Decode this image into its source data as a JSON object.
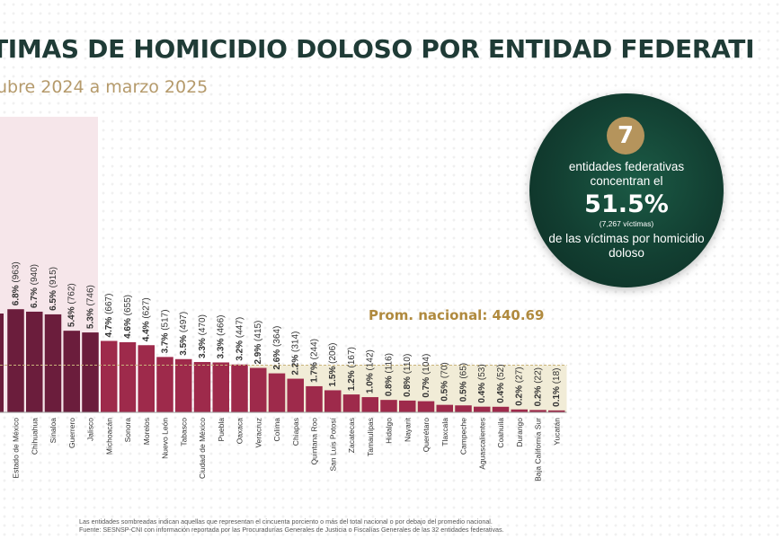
{
  "title": "TIMAS DE HOMICIDIO DOLOSO POR ENTIDAD FEDERATI",
  "subtitle": "ubre 2024 a marzo 2025",
  "callout": {
    "number": "7",
    "text_top": "entidades federativas concentran el",
    "percent": "51.5%",
    "victims": "(7,267 víctimas)",
    "text_bottom": "de las víctimas por homicidio doloso"
  },
  "footnotes": {
    "line1": "Las entidades sombreadas indican aquellas que representan el cincuenta porciento o más del total nacional o por debajo del promedio nacional.",
    "line2": "Fuente: SESNSP-CNI con información reportada por las Procuradurías Generales de Justicia o Fiscalías Generales de las 32 entidades federativas."
  },
  "colors": {
    "bar_dark": "#6b1d3c",
    "bar_light": "#9e2a4b",
    "shade_high": "#f6e6ea",
    "shade_low": "#f1ecd7",
    "avg_label": "#b08a3e"
  },
  "chart_data": {
    "type": "bar",
    "average_line": {
      "label": "Prom. nacional: 440.69",
      "value": 440.69
    },
    "categories": [
      "Estado de México",
      "Chihuahua",
      "Sinaloa",
      "Guerrero",
      "Jalisco",
      "Michoacán",
      "Sonora",
      "Morelos",
      "Nuevo León",
      "Tabasco",
      "Ciudad de México",
      "Puebla",
      "Oaxaca",
      "Veracruz",
      "Colima",
      "Chiapas",
      "Quintana Roo",
      "San Luis Potosí",
      "Zacatecas",
      "Tamaulipas",
      "Hidalgo",
      "Nayarit",
      "Querétaro",
      "Tlaxcala",
      "Campeche",
      "Aguascalientes",
      "Coahuila",
      "Durango",
      "Baja California Sur",
      "Yucatán"
    ],
    "values": [
      963,
      940,
      915,
      762,
      746,
      667,
      655,
      627,
      517,
      497,
      470,
      466,
      447,
      415,
      364,
      314,
      244,
      206,
      167,
      142,
      116,
      110,
      104,
      70,
      65,
      53,
      52,
      27,
      22,
      18
    ],
    "percent_labels": [
      "6.8%",
      "6.7%",
      "6.5%",
      "5.4%",
      "5.3%",
      "4.7%",
      "4.6%",
      "4.4%",
      "3.7%",
      "3.5%",
      "3.3%",
      "3.3%",
      "3.2%",
      "2.9%",
      "2.6%",
      "2.2%",
      "1.7%",
      "1.5%",
      "1.2%",
      "1.0%",
      "0.8%",
      "0.8%",
      "0.7%",
      "0.5%",
      "0.5%",
      "0.4%",
      "0.4%",
      "0.2%",
      "0.2%",
      "0.1%"
    ],
    "value_labels": [
      "(963)",
      "(940)",
      "(915)",
      "(762)",
      "(746)",
      "(667)",
      "(655)",
      "(627)",
      "(517)",
      "(497)",
      "(470)",
      "(466)",
      "(447)",
      "(415)",
      "(364)",
      "(314)",
      "(244)",
      "(206)",
      "(167)",
      "(142)",
      "(116)",
      "(110)",
      "(104)",
      "(70)",
      "(65)",
      "(53)",
      "(52)",
      "(27)",
      "(22)",
      "(18)"
    ],
    "shaded_top_count": 5,
    "shaded_below_average_from": "Veracruz"
  }
}
